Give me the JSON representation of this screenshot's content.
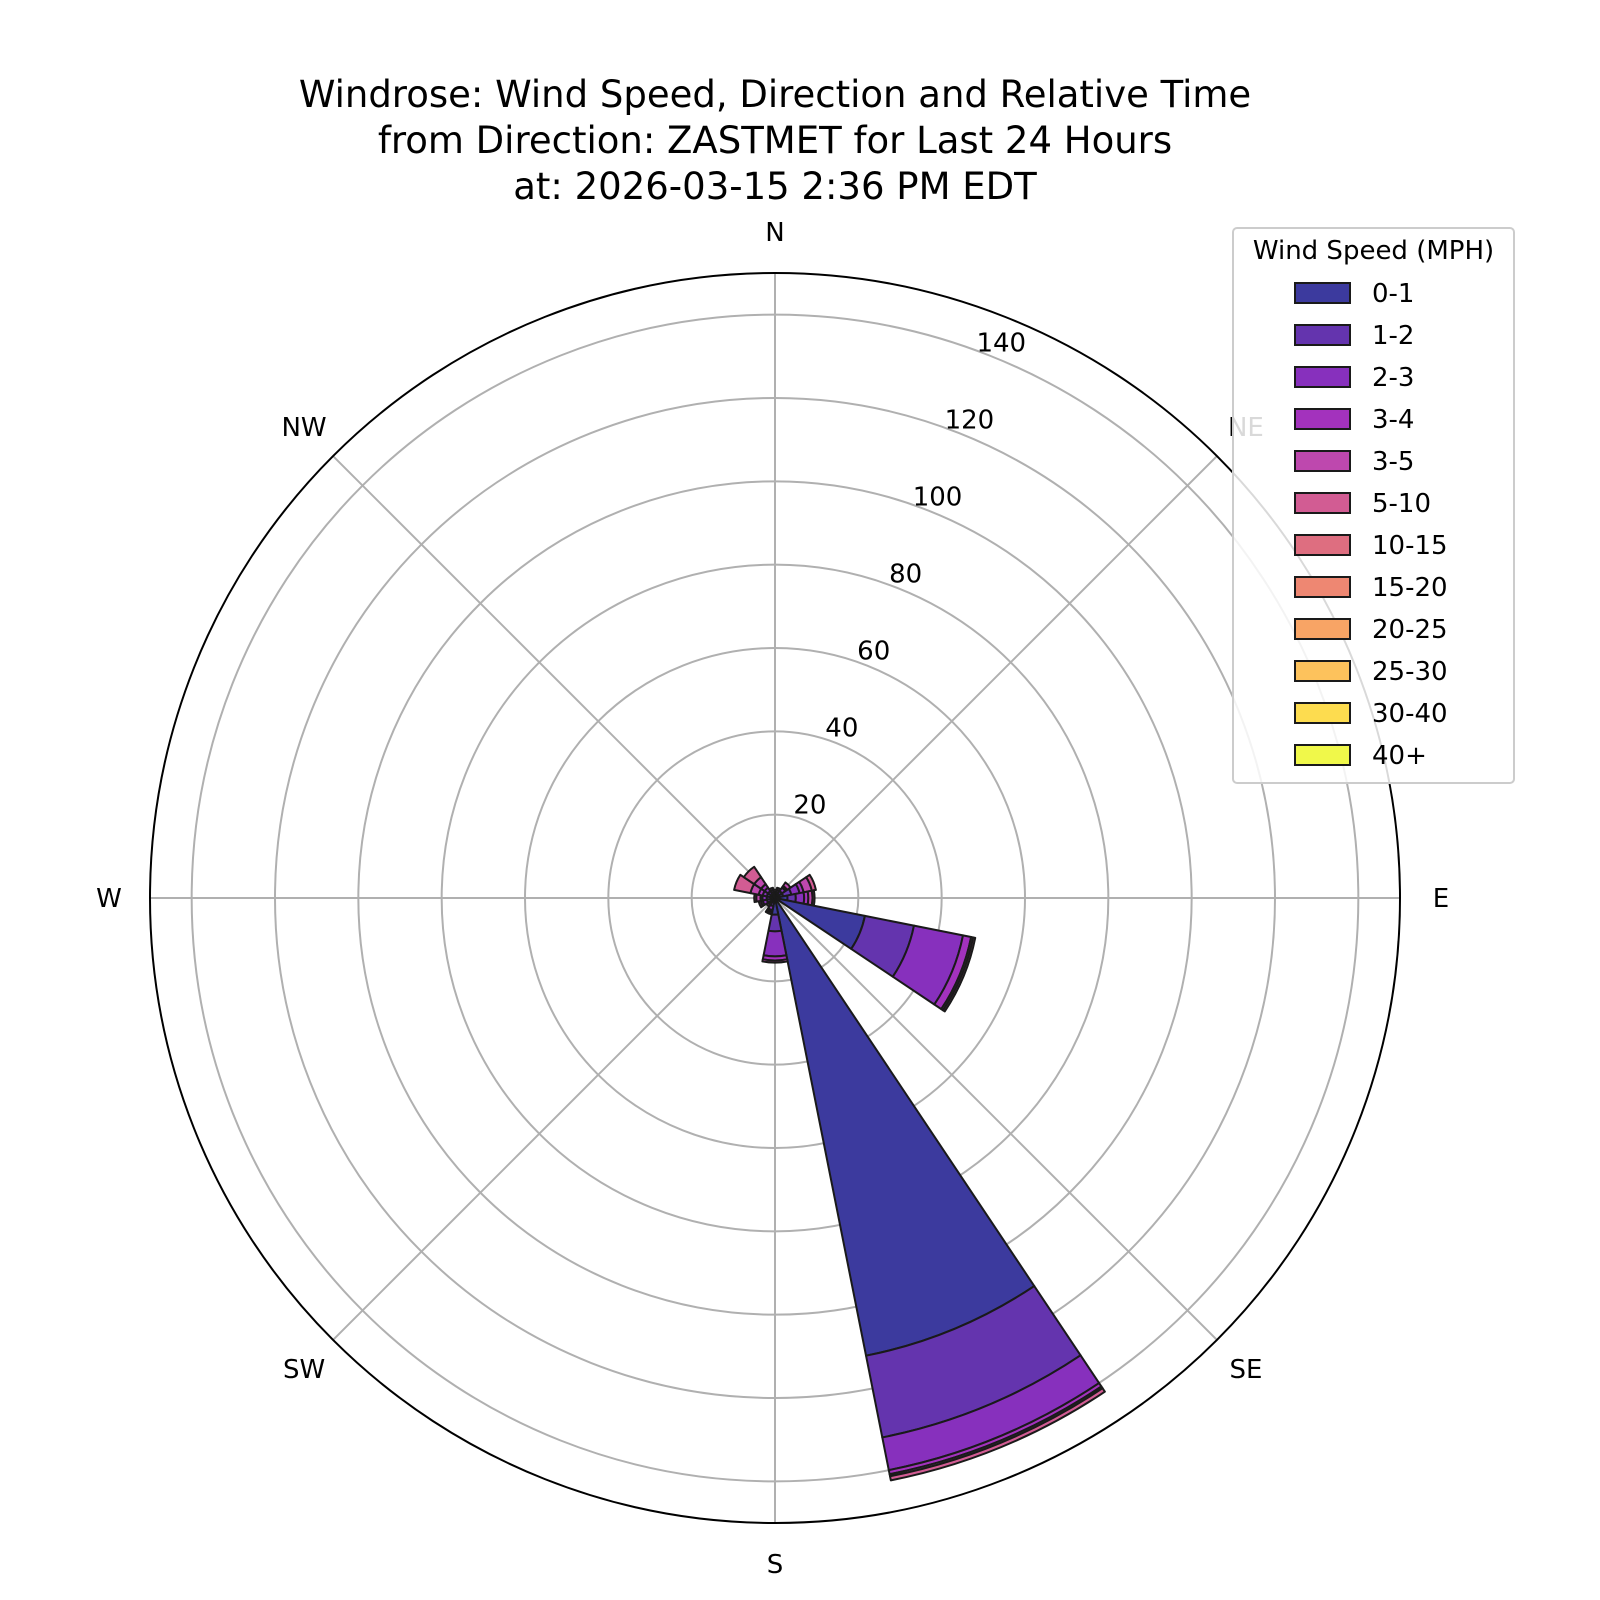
{
  "chart_data": {
    "type": "windrose",
    "title_lines": [
      "Windrose: Wind Speed, Direction and Relative Time",
      "from Direction: ZASTMET for Last 24 Hours",
      "at: 2026-03-15 2:36 PM EDT"
    ],
    "direction_labels": [
      {
        "name": "N",
        "deg": 0
      },
      {
        "name": "NE",
        "deg": 45
      },
      {
        "name": "E",
        "deg": 90
      },
      {
        "name": "SE",
        "deg": 135
      },
      {
        "name": "S",
        "deg": 180
      },
      {
        "name": "SW",
        "deg": 225
      },
      {
        "name": "W",
        "deg": 270
      },
      {
        "name": "NW",
        "deg": 315
      }
    ],
    "radial_ticks": [
      "20",
      "40",
      "60",
      "80",
      "100",
      "120",
      "140"
    ],
    "radial_tick_values": [
      20,
      40,
      60,
      80,
      100,
      120,
      140
    ],
    "rmax": 150,
    "grid": true,
    "sector_width_deg": 22.5,
    "legend": {
      "title": "Wind Speed (MPH)",
      "placement": "top-right",
      "bins": [
        {
          "label": "0-1",
          "color": "#3c3a9e"
        },
        {
          "label": "1-2",
          "color": "#6434ae"
        },
        {
          "label": "2-3",
          "color": "#8730bd"
        },
        {
          "label": "3-4",
          "color": "#a332bd"
        },
        {
          "label": "3-5",
          "color": "#be48ae"
        },
        {
          "label": "5-10",
          "color": "#d25c93"
        },
        {
          "label": "10-15",
          "color": "#de6e80"
        },
        {
          "label": "15-20",
          "color": "#ee8772"
        },
        {
          "label": "20-25",
          "color": "#f8a465"
        },
        {
          "label": "25-30",
          "color": "#fdc25c"
        },
        {
          "label": "30-40",
          "color": "#fddc4f"
        },
        {
          "label": "40+",
          "color": "#f0f84a"
        }
      ]
    },
    "sectors": [
      {
        "deg": 0,
        "values": [
          0,
          0.5,
          0.5,
          0.5,
          0.5,
          0,
          0,
          0,
          0,
          0,
          0,
          0
        ]
      },
      {
        "deg": 22.5,
        "values": [
          0.5,
          0.5,
          0.5,
          0.5,
          0.5,
          0,
          0,
          0,
          0,
          0,
          0,
          0
        ]
      },
      {
        "deg": 45,
        "values": [
          1,
          1,
          1,
          0.5,
          1,
          0,
          0,
          0,
          0,
          0,
          0,
          0
        ]
      },
      {
        "deg": 67.5,
        "values": [
          2,
          2,
          2,
          1,
          2,
          1,
          0,
          0,
          0,
          0,
          0,
          0
        ]
      },
      {
        "deg": 90,
        "values": [
          3,
          2,
          2,
          1,
          1,
          0.5,
          0,
          0,
          0,
          0,
          0,
          0
        ]
      },
      {
        "deg": 112.5,
        "values": [
          22,
          12,
          12,
          2,
          0.5,
          0.5,
          0,
          0,
          0,
          0,
          0,
          0
        ]
      },
      {
        "deg": 135,
        "values": [
          0,
          0,
          0,
          0,
          0,
          0,
          0,
          0,
          0,
          0,
          0,
          0
        ]
      },
      {
        "deg": 157.5,
        "values": [
          112,
          20,
          8,
          1,
          0.5,
          1,
          0,
          0,
          0,
          0,
          0,
          0
        ]
      },
      {
        "deg": 180,
        "values": [
          4,
          4,
          6,
          1,
          0.5,
          0,
          0,
          0,
          0,
          0,
          0,
          0
        ]
      },
      {
        "deg": 202.5,
        "values": [
          1,
          1,
          1,
          0.5,
          0.5,
          0,
          0,
          0,
          0,
          0,
          0,
          0
        ]
      },
      {
        "deg": 225,
        "values": [
          0.5,
          0.5,
          0.5,
          0.5,
          0.5,
          0,
          0,
          0,
          0,
          0,
          0,
          0
        ]
      },
      {
        "deg": 247.5,
        "values": [
          1,
          1,
          1,
          0.5,
          0.5,
          0,
          0,
          0,
          0,
          0,
          0,
          0
        ]
      },
      {
        "deg": 270,
        "values": [
          1,
          1,
          1,
          0.5,
          1,
          0.5,
          0,
          0,
          0,
          0,
          0,
          0
        ]
      },
      {
        "deg": 292.5,
        "values": [
          1,
          1,
          1,
          1,
          2,
          4,
          0,
          0,
          0,
          0,
          0,
          0
        ]
      },
      {
        "deg": 315,
        "values": [
          1,
          1,
          1,
          1,
          2,
          3,
          0,
          0,
          0,
          0,
          0,
          0
        ]
      },
      {
        "deg": 337.5,
        "values": [
          0.5,
          0.5,
          0.5,
          0.5,
          0.5,
          0,
          0,
          0,
          0,
          0,
          0,
          0
        ]
      }
    ]
  }
}
